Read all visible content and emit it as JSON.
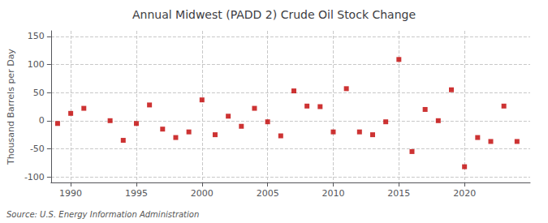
{
  "chart_data": {
    "type": "scatter",
    "title": "Annual Midwest (PADD 2) Crude Oil Stock Change",
    "ylabel": "Thousand Barrels per Day",
    "annotations": [
      "Source: U.S. Energy Information Administration"
    ],
    "x": [
      1989,
      1990,
      1991,
      1993,
      1994,
      1995,
      1996,
      1997,
      1998,
      1999,
      2000,
      2001,
      2002,
      2003,
      2004,
      2005,
      2006,
      2007,
      2008,
      2009,
      2010,
      2011,
      2012,
      2013,
      2014,
      2015,
      2016,
      2017,
      2018,
      2019,
      2020,
      2021,
      2022,
      2023,
      2024
    ],
    "values": [
      -5,
      13,
      22,
      0,
      -35,
      -5,
      28,
      -15,
      -30,
      -20,
      37,
      -25,
      8,
      -10,
      22,
      -2,
      -27,
      53,
      26,
      25,
      -20,
      57,
      -20,
      -25,
      -2,
      109,
      -55,
      20,
      0,
      55,
      -82,
      -30,
      -37,
      26,
      -37
    ],
    "color": "#c00000",
    "marker": "square",
    "xlim": [
      1988.5,
      2025
    ],
    "ylim": [
      -110,
      160
    ],
    "xticks": [
      1990,
      1995,
      2000,
      2005,
      2010,
      2015,
      2020
    ],
    "yticks": [
      -100,
      -50,
      0,
      50,
      100,
      150
    ],
    "grid": true
  }
}
